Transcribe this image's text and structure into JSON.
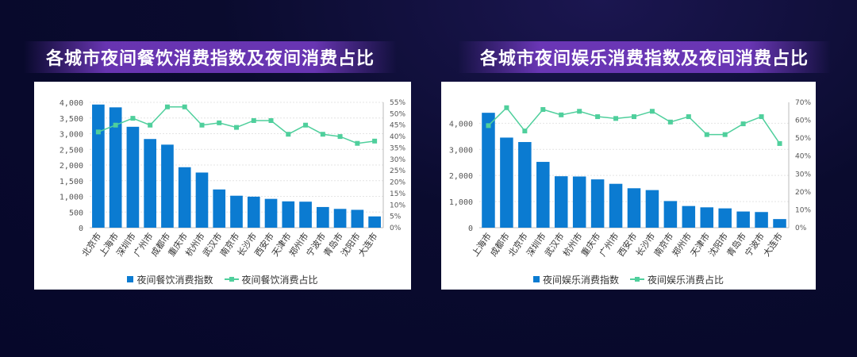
{
  "panels": [
    {
      "title": "各城市夜间餐饮消费指数及夜间消费占比",
      "chart_data": {
        "type": "bar",
        "categories": [
          "北京市",
          "上海市",
          "深圳市",
          "广州市",
          "成都市",
          "重庆市",
          "杭州市",
          "武汉市",
          "南京市",
          "长沙市",
          "西安市",
          "天津市",
          "郑州市",
          "宁波市",
          "青岛市",
          "沈阳市",
          "大连市"
        ],
        "series": [
          {
            "name": "夜间餐饮消费指数",
            "type": "bar",
            "axis": "left",
            "values": [
              3930,
              3840,
              3220,
              2830,
              2650,
              1930,
              1760,
              1220,
              1020,
              990,
              920,
              840,
              830,
              660,
              600,
              570,
              360
            ]
          },
          {
            "name": "夜间餐饮消费占比",
            "type": "line",
            "axis": "right",
            "values": [
              0.42,
              0.45,
              0.48,
              0.45,
              0.53,
              0.53,
              0.45,
              0.46,
              0.44,
              0.47,
              0.47,
              0.41,
              0.45,
              0.41,
              0.4,
              0.37,
              0.38
            ]
          }
        ],
        "ylim": [
          0,
          4000
        ],
        "yticks": [
          "0",
          "500",
          "1,000",
          "1,500",
          "2,000",
          "2,500",
          "3,000",
          "3,500",
          "4,000"
        ],
        "y2lim": [
          0,
          0.55
        ],
        "y2ticks": [
          "0%",
          "5%",
          "10%",
          "15%",
          "20%",
          "25%",
          "30%",
          "35%",
          "40%",
          "45%",
          "50%",
          "55%"
        ],
        "grid": true,
        "legend_position": "bottom",
        "colors": {
          "bar": "#0b7bd1",
          "line": "#4fcf9c"
        }
      }
    },
    {
      "title": "各城市夜间娱乐消费指数及夜间消费占比",
      "chart_data": {
        "type": "bar",
        "categories": [
          "上海市",
          "成都市",
          "北京市",
          "深圳市",
          "武汉市",
          "杭州市",
          "重庆市",
          "广州市",
          "西安市",
          "长沙市",
          "南京市",
          "郑州市",
          "天津市",
          "沈阳市",
          "青岛市",
          "宁波市",
          "大连市"
        ],
        "series": [
          {
            "name": "夜间娱乐消费指数",
            "type": "bar",
            "axis": "left",
            "values": [
              4400,
              3450,
              3280,
              2520,
              1970,
              1960,
              1850,
              1680,
              1510,
              1440,
              1020,
              830,
              780,
              740,
              620,
              600,
              330
            ]
          },
          {
            "name": "夜间娱乐消费占比",
            "type": "line",
            "axis": "right",
            "values": [
              0.57,
              0.67,
              0.54,
              0.66,
              0.63,
              0.65,
              0.62,
              0.61,
              0.62,
              0.65,
              0.59,
              0.62,
              0.52,
              0.52,
              0.58,
              0.62,
              0.47
            ]
          }
        ],
        "ylim": [
          0,
          4800
        ],
        "yticks": [
          "0",
          "1,000",
          "2,000",
          "3,000",
          "4,000"
        ],
        "ytick_values": [
          0,
          1000,
          2000,
          3000,
          4000
        ],
        "y2lim": [
          0,
          0.7
        ],
        "y2ticks": [
          "0%",
          "10%",
          "20%",
          "30%",
          "40%",
          "50%",
          "60%",
          "70%"
        ],
        "grid": true,
        "legend_position": "bottom",
        "colors": {
          "bar": "#0b7bd1",
          "line": "#4fcf9c"
        }
      }
    }
  ]
}
